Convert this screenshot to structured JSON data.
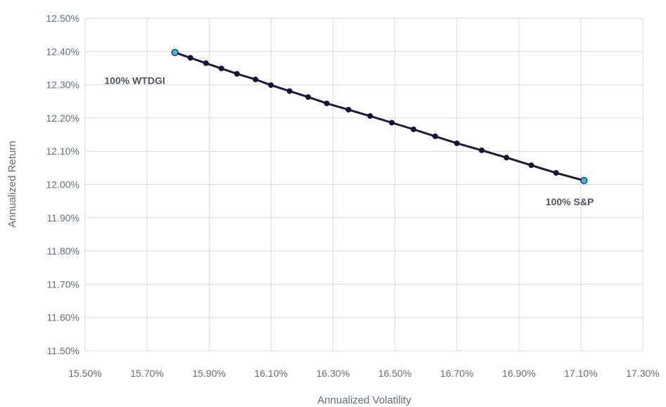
{
  "chart_data": {
    "type": "line",
    "title": "",
    "xlabel": "Annualized Volatility",
    "ylabel": "Annualized Return",
    "xlim": [
      15.5,
      17.3
    ],
    "ylim": [
      11.5,
      12.5
    ],
    "x_ticks": [
      "15.50%",
      "15.70%",
      "15.90%",
      "16.10%",
      "16.30%",
      "16.50%",
      "16.70%",
      "16.90%",
      "17.10%",
      "17.30%"
    ],
    "y_ticks": [
      "12.50%",
      "12.40%",
      "12.30%",
      "12.20%",
      "12.10%",
      "12.00%",
      "11.90%",
      "11.80%",
      "11.70%",
      "11.60%",
      "11.50%"
    ],
    "grid": true,
    "legend": "none",
    "series": [
      {
        "points": [
          {
            "x": 15.79,
            "y": 12.397
          },
          {
            "x": 15.84,
            "y": 12.381
          },
          {
            "x": 15.89,
            "y": 12.365
          },
          {
            "x": 15.94,
            "y": 12.349
          },
          {
            "x": 15.99,
            "y": 12.333
          },
          {
            "x": 16.05,
            "y": 12.316
          },
          {
            "x": 16.1,
            "y": 12.299
          },
          {
            "x": 16.16,
            "y": 12.281
          },
          {
            "x": 16.22,
            "y": 12.263
          },
          {
            "x": 16.28,
            "y": 12.244
          },
          {
            "x": 16.35,
            "y": 12.225
          },
          {
            "x": 16.42,
            "y": 12.206
          },
          {
            "x": 16.49,
            "y": 12.186
          },
          {
            "x": 16.56,
            "y": 12.166
          },
          {
            "x": 16.63,
            "y": 12.145
          },
          {
            "x": 16.7,
            "y": 12.124
          },
          {
            "x": 16.78,
            "y": 12.103
          },
          {
            "x": 16.86,
            "y": 12.081
          },
          {
            "x": 16.94,
            "y": 12.058
          },
          {
            "x": 17.02,
            "y": 12.035
          },
          {
            "x": 17.11,
            "y": 12.012
          }
        ]
      }
    ],
    "annotations": [
      {
        "text": "100% WTDGI",
        "x": 15.79,
        "y": 12.397
      },
      {
        "text": "100% S&P",
        "x": 17.11,
        "y": 12.012
      }
    ],
    "colors": {
      "line": "#1a1a3a",
      "marker": "#14143a",
      "endpoint": "#38b9d8",
      "grid": "#d9d9d9",
      "text": "#606d7a"
    }
  }
}
